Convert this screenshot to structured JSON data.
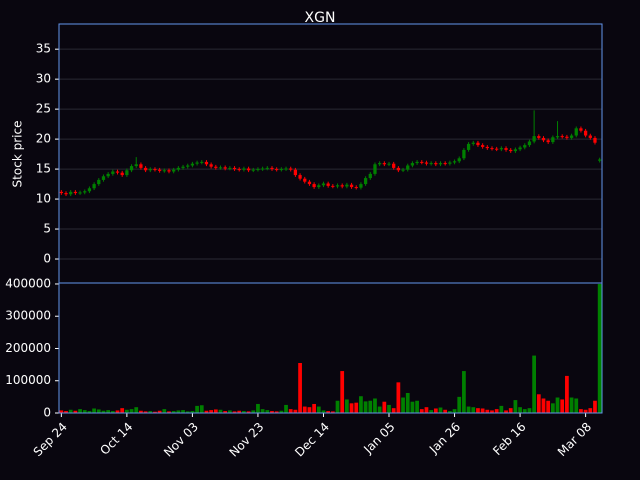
{
  "chart_data": {
    "type": "candlestick",
    "title": "XGN",
    "y_label": "Stock price",
    "xlim": [
      -0.5,
      115.5
    ],
    "xticks": [
      {
        "value": 0,
        "label": "Sep 24"
      },
      {
        "value": 14,
        "label": "Oct 14"
      },
      {
        "value": 28,
        "label": "Nov 03"
      },
      {
        "value": 42,
        "label": "Nov 23"
      },
      {
        "value": 56,
        "label": "Dec 14"
      },
      {
        "value": 70,
        "label": "Jan 05"
      },
      {
        "value": 84,
        "label": "Jan 26"
      },
      {
        "value": 98,
        "label": "Feb 16"
      },
      {
        "value": 112,
        "label": "Mar 08"
      }
    ],
    "ylim": [
      -4,
      39.2
    ],
    "yticks": [
      0,
      5,
      10,
      15,
      20,
      25,
      30,
      35
    ],
    "y2lim": [
      0,
      403000
    ],
    "y2ticks": [
      0,
      100000,
      200000,
      300000,
      400000
    ],
    "grid": true,
    "up_color": "#008000",
    "down_color": "#ff0000",
    "open": [
      11.2,
      11.0,
      10.8,
      11.2,
      11.0,
      11.1,
      11.3,
      11.8,
      12.5,
      13.2,
      13.8,
      14.2,
      14.6,
      14.4,
      14.0,
      14.8,
      15.5,
      15.8,
      15.2,
      14.8,
      15.0,
      14.9,
      14.7,
      14.8,
      14.6,
      14.9,
      15.2,
      15.4,
      15.6,
      15.9,
      16.1,
      16.2,
      15.8,
      15.4,
      15.2,
      15.3,
      15.1,
      15.2,
      15.0,
      14.9,
      15.1,
      14.8,
      14.9,
      15.0,
      15.1,
      15.2,
      15.0,
      14.9,
      15.0,
      15.1,
      14.9,
      14.0,
      13.4,
      12.9,
      12.5,
      12.0,
      12.3,
      12.6,
      12.2,
      12.1,
      12.3,
      12.1,
      12.4,
      12.0,
      11.9,
      12.5,
      13.5,
      14.2,
      15.8,
      16.0,
      15.8,
      15.9,
      15.2,
      14.8,
      14.9,
      15.6,
      16.0,
      16.2,
      16.1,
      15.9,
      16.0,
      15.8,
      16.0,
      15.9,
      16.1,
      16.3,
      16.8,
      18.2,
      19.2,
      19.4,
      19.0,
      18.7,
      18.5,
      18.4,
      18.3,
      18.5,
      18.2,
      18.0,
      18.3,
      18.6,
      19.0,
      19.6,
      20.5,
      20.2,
      19.8,
      19.5,
      20.3,
      20.5,
      20.4,
      20.2,
      20.6,
      21.8,
      21.4,
      20.6,
      20.2,
      16.4
    ],
    "high": [
      11.5,
      11.3,
      11.5,
      11.5,
      11.4,
      11.6,
      12.1,
      12.8,
      13.5,
      14.1,
      14.5,
      14.9,
      14.9,
      14.7,
      15.1,
      15.8,
      17.0,
      16.1,
      15.5,
      15.3,
      15.3,
      15.2,
      15.1,
      15.1,
      15.2,
      15.5,
      15.7,
      15.9,
      16.2,
      16.4,
      16.5,
      16.5,
      16.1,
      15.7,
      15.6,
      15.6,
      15.5,
      15.5,
      15.3,
      15.4,
      15.4,
      15.2,
      15.3,
      15.4,
      15.5,
      15.5,
      15.3,
      15.3,
      15.4,
      15.4,
      15.2,
      14.3,
      13.7,
      13.2,
      12.8,
      12.6,
      12.9,
      12.9,
      12.5,
      12.6,
      12.6,
      12.7,
      12.7,
      12.3,
      12.8,
      13.8,
      14.5,
      16.1,
      16.3,
      16.3,
      16.2,
      16.2,
      15.5,
      15.2,
      15.9,
      16.3,
      16.5,
      16.5,
      16.4,
      16.3,
      16.3,
      16.3,
      16.3,
      16.4,
      16.6,
      17.1,
      18.5,
      19.5,
      19.7,
      19.7,
      19.3,
      19.0,
      18.8,
      18.7,
      18.8,
      18.8,
      18.5,
      18.6,
      18.9,
      19.3,
      19.9,
      24.8,
      20.8,
      20.5,
      20.1,
      20.6,
      23.0,
      20.8,
      20.7,
      20.9,
      22.1,
      22.1,
      21.7,
      20.9,
      20.5,
      16.9
    ],
    "low": [
      10.7,
      10.5,
      10.5,
      10.7,
      10.7,
      10.8,
      11.0,
      11.5,
      12.2,
      12.9,
      13.5,
      13.9,
      14.1,
      13.7,
      13.7,
      14.5,
      15.2,
      14.9,
      14.5,
      14.5,
      14.6,
      14.4,
      14.4,
      14.3,
      14.3,
      14.6,
      14.9,
      15.1,
      15.3,
      15.6,
      15.8,
      15.5,
      15.1,
      14.9,
      14.9,
      14.8,
      14.8,
      14.7,
      14.6,
      14.6,
      14.5,
      14.5,
      14.6,
      14.7,
      14.8,
      14.7,
      14.6,
      14.6,
      14.7,
      14.6,
      13.7,
      13.1,
      12.6,
      12.2,
      11.7,
      11.7,
      12.0,
      11.9,
      11.8,
      11.8,
      11.8,
      11.8,
      11.7,
      11.6,
      11.6,
      12.2,
      13.2,
      13.9,
      15.5,
      15.5,
      15.5,
      14.9,
      14.5,
      14.5,
      14.6,
      15.3,
      15.7,
      15.8,
      15.6,
      15.6,
      15.5,
      15.5,
      15.6,
      15.6,
      15.8,
      16.0,
      16.5,
      17.9,
      18.9,
      18.7,
      18.4,
      18.2,
      18.1,
      18.0,
      18.0,
      17.9,
      17.7,
      17.7,
      18.0,
      18.3,
      18.7,
      19.3,
      19.9,
      19.5,
      19.2,
      19.2,
      20.0,
      20.1,
      19.9,
      19.9,
      20.3,
      21.1,
      20.3,
      19.9,
      19.1,
      16.1
    ],
    "close": [
      11.0,
      10.8,
      11.2,
      11.0,
      11.1,
      11.3,
      11.8,
      12.5,
      13.2,
      13.8,
      14.2,
      14.6,
      14.4,
      14.0,
      14.8,
      15.5,
      15.8,
      15.2,
      14.8,
      15.0,
      14.9,
      14.7,
      14.8,
      14.6,
      14.9,
      15.2,
      15.4,
      15.6,
      15.9,
      16.1,
      16.2,
      15.8,
      15.4,
      15.2,
      15.3,
      15.1,
      15.2,
      15.0,
      14.9,
      15.1,
      14.8,
      14.9,
      15.0,
      15.1,
      15.2,
      15.0,
      14.9,
      15.0,
      15.1,
      14.9,
      14.0,
      13.4,
      12.9,
      12.5,
      12.0,
      12.3,
      12.6,
      12.2,
      12.1,
      12.3,
      12.1,
      12.4,
      12.0,
      11.9,
      12.5,
      13.5,
      14.2,
      15.8,
      16.0,
      15.8,
      15.9,
      15.2,
      14.8,
      14.9,
      15.6,
      16.0,
      16.2,
      16.1,
      15.9,
      16.0,
      15.8,
      16.0,
      15.9,
      16.1,
      16.3,
      16.8,
      18.2,
      19.2,
      19.4,
      19.0,
      18.7,
      18.5,
      18.4,
      18.3,
      18.5,
      18.2,
      18.0,
      18.3,
      18.6,
      19.0,
      19.6,
      20.5,
      20.2,
      19.8,
      19.5,
      20.3,
      20.5,
      20.4,
      20.2,
      20.6,
      21.8,
      21.4,
      20.6,
      20.2,
      19.4,
      16.6
    ],
    "volume": [
      8000,
      6000,
      10000,
      7000,
      12000,
      9000,
      6000,
      14000,
      11000,
      7000,
      9000,
      6000,
      8000,
      15000,
      10000,
      12000,
      18000,
      7000,
      5000,
      6000,
      4000,
      7000,
      12000,
      5000,
      6000,
      8000,
      9000,
      5000,
      6000,
      22000,
      24000,
      7000,
      9000,
      11000,
      10000,
      6000,
      8000,
      5000,
      7000,
      6000,
      5000,
      8000,
      28000,
      12000,
      9000,
      6000,
      5000,
      7000,
      25000,
      12000,
      10000,
      155000,
      20000,
      18000,
      28000,
      20000,
      8000,
      6000,
      5000,
      38000,
      130000,
      42000,
      30000,
      32000,
      52000,
      36000,
      38000,
      45000,
      20000,
      35000,
      25000,
      15000,
      95000,
      48000,
      62000,
      35000,
      38000,
      12000,
      18000,
      9000,
      14000,
      17000,
      10000,
      6000,
      12000,
      50000,
      130000,
      20000,
      18000,
      15000,
      14000,
      10000,
      8000,
      12000,
      22000,
      8000,
      15000,
      40000,
      18000,
      12000,
      15000,
      178000,
      58000,
      45000,
      38000,
      30000,
      48000,
      42000,
      115000,
      48000,
      45000,
      12000,
      10000,
      15000,
      38000,
      400000
    ]
  }
}
